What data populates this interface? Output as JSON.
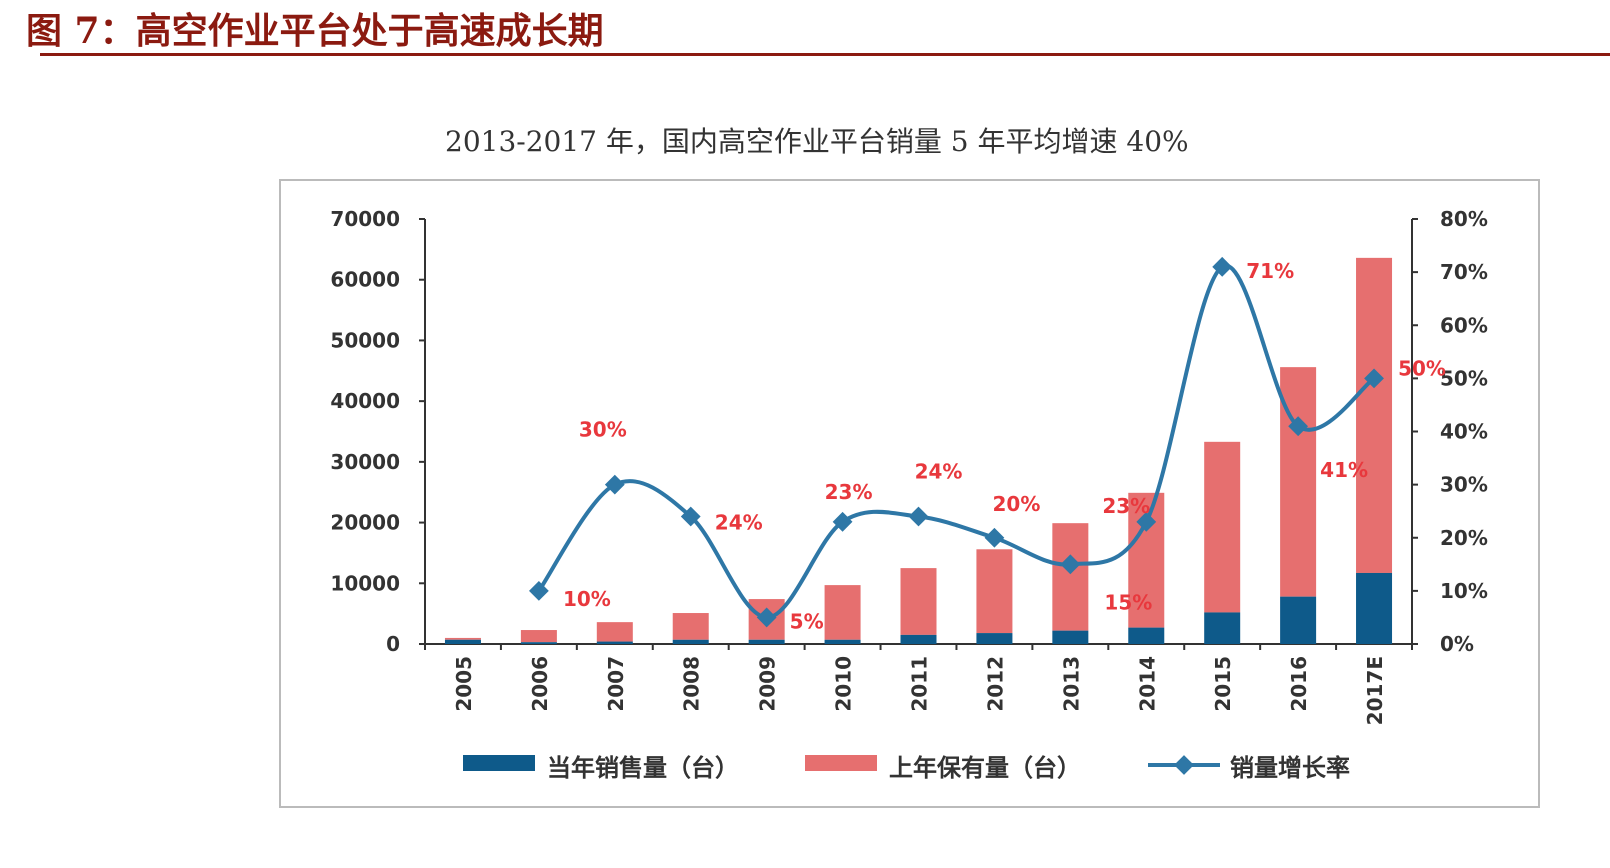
{
  "figure_title": "图 7：高空作业平台处于高速成长期",
  "chart_data": {
    "type": "bar",
    "title": "2013-2017 年，国内高空作业平台销量 5 年平均增速 40%",
    "categories": [
      "2005",
      "2006",
      "2007",
      "2008",
      "2009",
      "2010",
      "2011",
      "2012",
      "2013",
      "2014",
      "2015",
      "2016",
      "2017E"
    ],
    "stacked": true,
    "series": [
      {
        "name": "当年销售量（台）",
        "type": "bar",
        "axis": "left",
        "color": "#0e5a8a",
        "values": [
          700,
          300,
          400,
          700,
          700,
          700,
          1500,
          1800,
          2200,
          2700,
          5200,
          7800,
          11700
        ]
      },
      {
        "name": "上年保有量（台）",
        "type": "bar",
        "axis": "left",
        "color": "#e66f6f",
        "values": [
          300,
          2000,
          3200,
          4400,
          6700,
          9000,
          11000,
          13800,
          17700,
          22200,
          28100,
          37800,
          51900
        ]
      },
      {
        "name": "销量增长率",
        "type": "line",
        "axis": "right",
        "color": "#2e77a6",
        "values": [
          null,
          10,
          30,
          24,
          5,
          23,
          24,
          20,
          15,
          23,
          71,
          41,
          50
        ],
        "labels": [
          null,
          "10%",
          "30%",
          "24%",
          "5%",
          "23%",
          "24%",
          "20%",
          "15%",
          "23%",
          "71%",
          "41%",
          "50%"
        ]
      }
    ],
    "y_left": {
      "range": [
        0,
        70000
      ],
      "ticks": [
        "0",
        "10000",
        "20000",
        "30000",
        "40000",
        "50000",
        "60000",
        "70000"
      ]
    },
    "y_right": {
      "range": [
        0,
        80
      ],
      "ticks": [
        "0%",
        "10%",
        "20%",
        "30%",
        "40%",
        "50%",
        "60%",
        "70%",
        "80%"
      ]
    },
    "grid": false,
    "legend_position": "bottom"
  }
}
